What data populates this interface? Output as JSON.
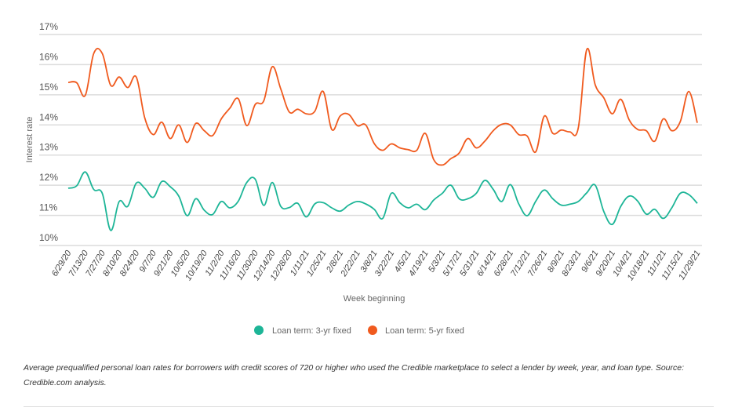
{
  "chart_data": {
    "type": "line",
    "title": "",
    "xlabel": "Week beginning",
    "ylabel": "Interest rate",
    "ylim": [
      10,
      17
    ],
    "yticks": [
      "10%",
      "11%",
      "12%",
      "13%",
      "14%",
      "15%",
      "16%",
      "17%"
    ],
    "grid": true,
    "legend_position": "bottom",
    "x": [
      "6/29/20",
      "7/6/20",
      "7/13/20",
      "7/20/20",
      "7/27/20",
      "8/3/20",
      "8/10/20",
      "8/17/20",
      "8/24/20",
      "8/31/20",
      "9/7/20",
      "9/14/20",
      "9/21/20",
      "9/28/20",
      "10/5/20",
      "10/12/20",
      "10/19/20",
      "10/26/20",
      "11/2/20",
      "11/9/20",
      "11/16/20",
      "11/23/20",
      "11/30/20",
      "12/7/20",
      "12/14/20",
      "12/21/20",
      "12/28/20",
      "1/4/21",
      "1/11/21",
      "1/18/21",
      "1/25/21",
      "2/1/21",
      "2/8/21",
      "2/15/21",
      "2/22/21",
      "3/1/21",
      "3/8/21",
      "3/15/21",
      "3/22/21",
      "3/29/21",
      "4/5/21",
      "4/12/21",
      "4/19/21",
      "4/26/21",
      "5/3/21",
      "5/10/21",
      "5/17/21",
      "5/24/21",
      "5/31/21",
      "6/7/21",
      "6/14/21",
      "6/21/21",
      "6/28/21",
      "7/5/21",
      "7/12/21",
      "7/19/21",
      "7/26/21",
      "8/2/21",
      "8/9/21",
      "8/16/21",
      "8/23/21",
      "8/30/21",
      "9/6/21",
      "9/13/21",
      "9/20/21",
      "9/27/21",
      "10/4/21",
      "10/11/21",
      "10/18/21",
      "10/25/21",
      "11/1/21",
      "11/8/21",
      "11/15/21",
      "11/22/21",
      "11/29/21"
    ],
    "xtick_labels": [
      "6/29/20",
      "7/13/20",
      "7/27/20",
      "8/10/20",
      "8/24/20",
      "9/7/20",
      "9/21/20",
      "10/5/20",
      "10/19/20",
      "11/2/20",
      "11/16/20",
      "11/30/20",
      "12/14/20",
      "12/28/20",
      "1/11/21",
      "1/25/21",
      "2/8/21",
      "2/22/21",
      "3/8/21",
      "3/22/21",
      "4/5/21",
      "4/19/21",
      "5/3/21",
      "5/17/21",
      "5/31/21",
      "6/14/21",
      "6/28/21",
      "7/12/21",
      "7/26/21",
      "8/9/21",
      "8/23/21",
      "9/6/21",
      "9/20/21",
      "10/4/21",
      "10/18/21",
      "11/1/21",
      "11/15/21",
      "11/29/21"
    ],
    "series": [
      {
        "name": "Loan term: 3-yr fixed",
        "color": "#1db597",
        "values": [
          11.9,
          11.98,
          12.44,
          11.86,
          11.73,
          10.5,
          11.46,
          11.3,
          12.07,
          11.9,
          11.6,
          12.12,
          11.95,
          11.64,
          10.99,
          11.55,
          11.17,
          11.03,
          11.46,
          11.25,
          11.47,
          12.09,
          12.2,
          11.33,
          12.09,
          11.3,
          11.26,
          11.4,
          10.95,
          11.38,
          11.42,
          11.25,
          11.14,
          11.34,
          11.46,
          11.38,
          11.2,
          10.9,
          11.73,
          11.42,
          11.25,
          11.37,
          11.19,
          11.51,
          11.73,
          12.0,
          11.55,
          11.55,
          11.73,
          12.16,
          11.86,
          11.46,
          12.02,
          11.38,
          10.99,
          11.47,
          11.84,
          11.55,
          11.34,
          11.37,
          11.46,
          11.75,
          12.0,
          11.13,
          10.7,
          11.3,
          11.64,
          11.47,
          11.04,
          11.2,
          10.9,
          11.25,
          11.73,
          11.69,
          11.4
        ]
      },
      {
        "name": "Loan term: 5-yr fixed",
        "color": "#f05a1e",
        "values": [
          15.41,
          15.4,
          14.98,
          16.37,
          16.37,
          15.31,
          15.59,
          15.24,
          15.59,
          14.24,
          13.68,
          14.09,
          13.55,
          14.0,
          13.42,
          14.05,
          13.81,
          13.65,
          14.2,
          14.55,
          14.87,
          13.98,
          14.68,
          14.8,
          15.93,
          15.2,
          14.43,
          14.52,
          14.37,
          14.45,
          15.11,
          13.85,
          14.3,
          14.35,
          13.98,
          14.0,
          13.38,
          13.16,
          13.37,
          13.24,
          13.18,
          13.16,
          13.72,
          12.85,
          12.67,
          12.88,
          13.07,
          13.55,
          13.24,
          13.46,
          13.81,
          14.02,
          14.0,
          13.68,
          13.63,
          13.11,
          14.29,
          13.72,
          13.83,
          13.77,
          13.9,
          16.5,
          15.33,
          14.9,
          14.37,
          14.85,
          14.16,
          13.85,
          13.81,
          13.46,
          14.2,
          13.81,
          14.11,
          15.11,
          14.07
        ]
      }
    ]
  },
  "caption": "Average prequalified personal loan rates for borrowers with credit scores of 720 or higher who used the Credible marketplace to select a lender by week, year, and loan type. Source: Credible.com analysis."
}
